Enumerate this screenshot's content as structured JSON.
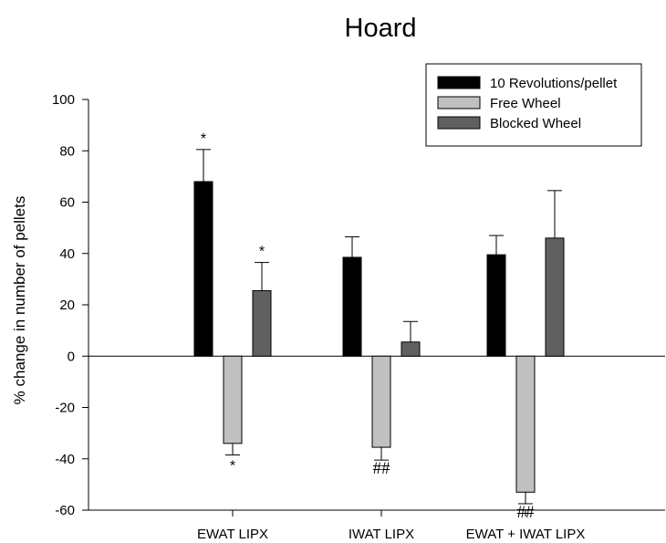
{
  "chart_data": {
    "type": "bar",
    "title": "Hoard",
    "ylabel": "% change in number of pellets",
    "xlabel": "",
    "ylim": [
      -60,
      100
    ],
    "yticks": [
      -60,
      -40,
      -20,
      0,
      20,
      40,
      60,
      80,
      100
    ],
    "grid": false,
    "legend_position": "top-right",
    "categories": [
      "EWAT LIPX",
      "IWAT LIPX",
      "EWAT + IWAT LIPX"
    ],
    "series": [
      {
        "name": "10 Revolutions/pellet",
        "color": "#000000",
        "values": [
          68,
          38.5,
          39.5
        ],
        "errors": [
          12.5,
          8,
          7.5
        ],
        "annotations": [
          "*",
          "",
          ""
        ]
      },
      {
        "name": "Free Wheel",
        "color": "#c0c0c0",
        "values": [
          -34,
          -35.5,
          -53
        ],
        "errors": [
          4.5,
          5,
          4.5
        ],
        "annotations": [
          "*",
          "##",
          "##"
        ]
      },
      {
        "name": "Blocked Wheel",
        "color": "#606060",
        "values": [
          25.5,
          5.5,
          46
        ],
        "errors": [
          11,
          8,
          18.5
        ],
        "annotations": [
          "*",
          "",
          ""
        ]
      }
    ]
  }
}
